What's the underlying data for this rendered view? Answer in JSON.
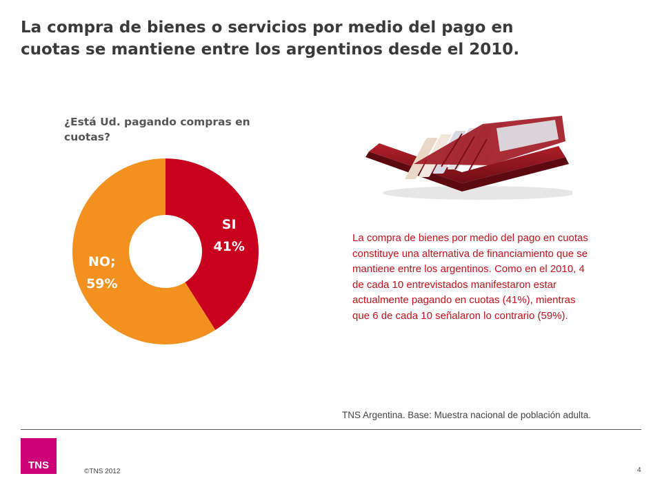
{
  "slide": {
    "title": "La compra de bienes o servicios por medio del pago en\ncuotas se mantiene entre los argentinos desde el 2010."
  },
  "question": "¿Está Ud. pagando compras en cuotas?",
  "summary": "La compra de bienes por medio del pago en cuotas constituye una alternativa de financiamiento que se mantiene entre los argentinos. Como en el 2010, 4 de cada 10 entrevistados manifestaron estar actualmente pagando en cuotas (41%), mientras que 6 de cada 10 señalaron lo contrario (59%).",
  "source": "TNS Argentina. Base: Muestra nacional de población adulta.",
  "footer": {
    "logo_text": "TNS",
    "copyright": "©TNS 2012",
    "page_number": "4"
  },
  "colors": {
    "si": "#c8001e",
    "no": "#f39120",
    "summary_text": "#c4111b",
    "logo": "#cc0077"
  },
  "chart_data": {
    "type": "pie",
    "donut": true,
    "categories": [
      "SI",
      "NO"
    ],
    "values": [
      41,
      59
    ],
    "unit": "%",
    "data_labels": [
      {
        "name": "SI",
        "value": "41%"
      },
      {
        "name": "NO;",
        "value": "59%"
      }
    ]
  },
  "image": {
    "description_icon": "red-wallet-photo"
  }
}
